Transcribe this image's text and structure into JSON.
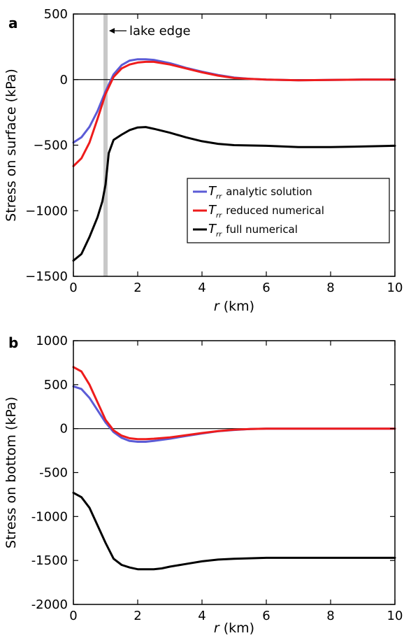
{
  "chart_data": [
    {
      "type": "line",
      "panel_label": "a",
      "xlabel_var": "r",
      "xlabel_unit": " (km)",
      "ylabel": "Stress on surface (kPa)",
      "xlim": [
        0,
        10
      ],
      "ylim": [
        -1500,
        500
      ],
      "x_ticks": [
        0,
        2,
        4,
        6,
        8,
        10
      ],
      "y_ticks": [
        -1500,
        -1000,
        -500,
        0,
        500
      ],
      "y_tick_labels": [
        "−1500",
        "−1000",
        "−500",
        "0",
        "500"
      ],
      "zero_line": true,
      "annotation": {
        "text": "lake edge",
        "x": 1.0
      },
      "legend": {
        "placement": "center-right",
        "entries": [
          {
            "symbol": "T",
            "subscript": "rr",
            "text": "analytic solution",
            "color": "#5b5bd6"
          },
          {
            "symbol": "T",
            "subscript": "rr",
            "text": "reduced numerical",
            "color": "#ee1c1c"
          },
          {
            "symbol": "T",
            "subscript": "rr",
            "text": "full numerical",
            "color": "#000000"
          }
        ]
      },
      "series": [
        {
          "color": "#5b5bd6",
          "x": [
            0,
            0.25,
            0.5,
            0.75,
            1.0,
            1.25,
            1.5,
            1.75,
            2.0,
            2.25,
            2.5,
            3.0,
            3.5,
            4.0,
            4.5,
            5.0,
            5.5,
            6.0,
            7.0,
            8.0,
            9.0,
            10.0
          ],
          "y": [
            -480,
            -440,
            -360,
            -240,
            -90,
            40,
            110,
            145,
            155,
            155,
            150,
            125,
            90,
            60,
            35,
            15,
            5,
            0,
            -5,
            -3,
            0,
            0
          ]
        },
        {
          "color": "#ee1c1c",
          "x": [
            0,
            0.25,
            0.5,
            0.75,
            1.0,
            1.25,
            1.5,
            1.75,
            2.0,
            2.25,
            2.5,
            3.0,
            3.5,
            4.0,
            4.5,
            5.0,
            5.5,
            6.0,
            7.0,
            8.0,
            9.0,
            10.0
          ],
          "y": [
            -660,
            -600,
            -480,
            -300,
            -110,
            20,
            85,
            115,
            130,
            135,
            135,
            115,
            85,
            55,
            30,
            12,
            5,
            0,
            -5,
            -3,
            0,
            0
          ]
        },
        {
          "color": "#000000",
          "x": [
            0,
            0.25,
            0.5,
            0.75,
            0.9,
            1.0,
            1.1,
            1.25,
            1.5,
            1.75,
            2.0,
            2.25,
            2.5,
            3.0,
            3.5,
            4.0,
            4.5,
            5.0,
            6.0,
            7.0,
            8.0,
            9.0,
            10.0
          ],
          "y": [
            -1380,
            -1330,
            -1200,
            -1050,
            -930,
            -800,
            -560,
            -460,
            -420,
            -385,
            -365,
            -362,
            -375,
            -405,
            -440,
            -470,
            -490,
            -500,
            -505,
            -515,
            -515,
            -510,
            -505
          ]
        }
      ]
    },
    {
      "type": "line",
      "panel_label": "b",
      "xlabel_var": "r",
      "xlabel_unit": " (km)",
      "ylabel": "Stress on bottom (kPa)",
      "xlim": [
        0,
        10
      ],
      "ylim": [
        -2000,
        1000
      ],
      "x_ticks": [
        0,
        2,
        4,
        6,
        8,
        10
      ],
      "y_ticks": [
        -2000,
        -1500,
        -1000,
        -500,
        0,
        500,
        1000
      ],
      "y_tick_labels": [
        "-2000",
        "-1500",
        "-1000",
        "-500",
        "0",
        "500",
        "1000"
      ],
      "zero_line": true,
      "series": [
        {
          "color": "#5b5bd6",
          "x": [
            0,
            0.25,
            0.5,
            0.75,
            1.0,
            1.25,
            1.5,
            1.75,
            2.0,
            2.25,
            2.5,
            3.0,
            3.5,
            4.0,
            4.5,
            5.0,
            5.5,
            6.0,
            7.0,
            8.0,
            10.0
          ],
          "y": [
            480,
            450,
            350,
            210,
            70,
            -40,
            -105,
            -140,
            -150,
            -150,
            -140,
            -115,
            -85,
            -55,
            -30,
            -15,
            -5,
            0,
            0,
            0,
            0
          ]
        },
        {
          "color": "#ee1c1c",
          "x": [
            0,
            0.25,
            0.5,
            0.75,
            1.0,
            1.25,
            1.5,
            1.75,
            2.0,
            2.25,
            2.5,
            3.0,
            3.5,
            4.0,
            4.5,
            5.0,
            5.5,
            6.0,
            7.0,
            8.0,
            10.0
          ],
          "y": [
            700,
            650,
            500,
            300,
            100,
            -20,
            -80,
            -110,
            -120,
            -120,
            -115,
            -100,
            -75,
            -50,
            -28,
            -12,
            -5,
            0,
            0,
            0,
            0
          ]
        },
        {
          "color": "#000000",
          "x": [
            0,
            0.25,
            0.5,
            0.75,
            1.0,
            1.25,
            1.5,
            1.75,
            2.0,
            2.25,
            2.5,
            2.75,
            3.0,
            3.5,
            4.0,
            4.5,
            5.0,
            6.0,
            7.0,
            8.0,
            9.0,
            10.0
          ],
          "y": [
            -730,
            -780,
            -900,
            -1100,
            -1300,
            -1480,
            -1550,
            -1580,
            -1600,
            -1600,
            -1600,
            -1590,
            -1570,
            -1540,
            -1510,
            -1490,
            -1480,
            -1470,
            -1470,
            -1470,
            -1470,
            -1470
          ]
        }
      ]
    }
  ]
}
